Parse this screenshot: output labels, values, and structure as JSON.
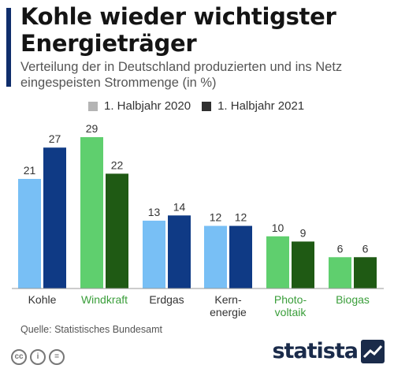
{
  "title": "Kohle wieder wichtigster Energieträger",
  "subtitle": "Verteilung der in Deutschland produzierten und ins Netz eingespeisten Strommenge (in %)",
  "source": "Quelle: Statistisches Bundesamt",
  "logo_text": "statista",
  "license_icons": [
    "cc-icon",
    "attribution-icon",
    "no-derivatives-icon"
  ],
  "colors": {
    "accent": "#0f2d6b",
    "legend_2020": "#b4b4b4",
    "legend_2021": "#2f2f2f",
    "fossil_2020": "#78bff5",
    "fossil_2021": "#0f3a85",
    "renewable_2020": "#5fcf6e",
    "renewable_2021": "#1f5a14",
    "renewable_label": "#3a9e3a"
  },
  "chart_data": {
    "type": "bar",
    "title": "Kohle wieder wichtigster Energieträger",
    "categories": [
      "Kohle",
      "Windkraft",
      "Erdgas",
      "Kern-\nenergie",
      "Photo-\nvoltaik",
      "Biogas"
    ],
    "renewable": [
      false,
      true,
      false,
      false,
      true,
      true
    ],
    "series": [
      {
        "name": "1. Halbjahr 2020",
        "values": [
          21,
          29,
          13,
          12,
          10,
          6
        ]
      },
      {
        "name": "1. Halbjahr 2021",
        "values": [
          27,
          22,
          14,
          12,
          9,
          6
        ]
      }
    ],
    "ylim": [
      0,
      29
    ],
    "grid": false,
    "legend": "top"
  }
}
